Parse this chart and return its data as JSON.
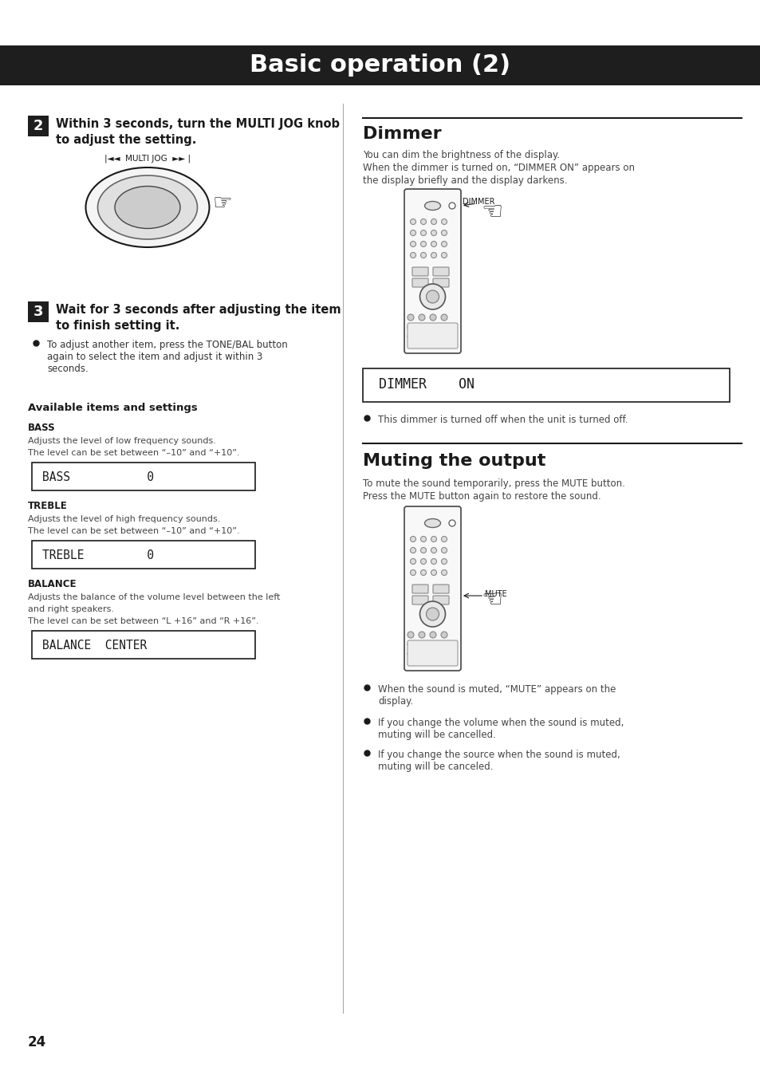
{
  "title": "Basic operation (2)",
  "title_bg": "#1e1e1e",
  "title_color": "#ffffff",
  "page_bg": "#ffffff",
  "page_number": "24",
  "step2_bold1": "Within 3 seconds, turn the MULTI JOG knob",
  "step2_bold2": "to adjust the setting.",
  "step3_bold1": "Wait for 3 seconds after adjusting the item",
  "step3_bold2": "to finish setting it.",
  "step3_bullet": "To adjust another item, press the TONE/BAL button\nagain to select the item and adjust it within 3\nseconds.",
  "available_title": "Available items and settings",
  "bass_title": "BASS",
  "bass_desc1": "Adjusts the level of low frequency sounds.",
  "bass_desc2": "The level can be set between “–10” and “+10”.",
  "bass_display": "BASS           0",
  "treble_title": "TREBLE",
  "treble_desc1": "Adjusts the level of high frequency sounds.",
  "treble_desc2": "The level can be set between “–10” and “+10”.",
  "treble_display": "TREBLE         0",
  "balance_title": "BALANCE",
  "balance_desc1": "Adjusts the balance of the volume level between the left",
  "balance_desc2": "and right speakers.",
  "balance_desc3": "The level can be set between “L +16” and “R +16”.",
  "balance_display": "BALANCE  CENTER",
  "dimmer_title": "Dimmer",
  "dimmer_desc1": "You can dim the brightness of the display.",
  "dimmer_desc2": "When the dimmer is turned on, “DIMMER ON” appears on",
  "dimmer_desc3": "the display briefly and the display darkens.",
  "dimmer_display": "DIMMER    ON",
  "dimmer_bullet": "This dimmer is turned off when the unit is turned off.",
  "muting_title": "Muting the output",
  "muting_desc1": "To mute the sound temporarily, press the MUTE button.",
  "muting_desc2": "Press the MUTE button again to restore the sound.",
  "muting_bullet1": "When the sound is muted, “MUTE” appears on the\ndisplay.",
  "muting_bullet2": "If you change the volume when the sound is muted,\nmuting will be cancelled.",
  "muting_bullet3": "If you change the source when the sound is muted,\nmuting will be canceled."
}
